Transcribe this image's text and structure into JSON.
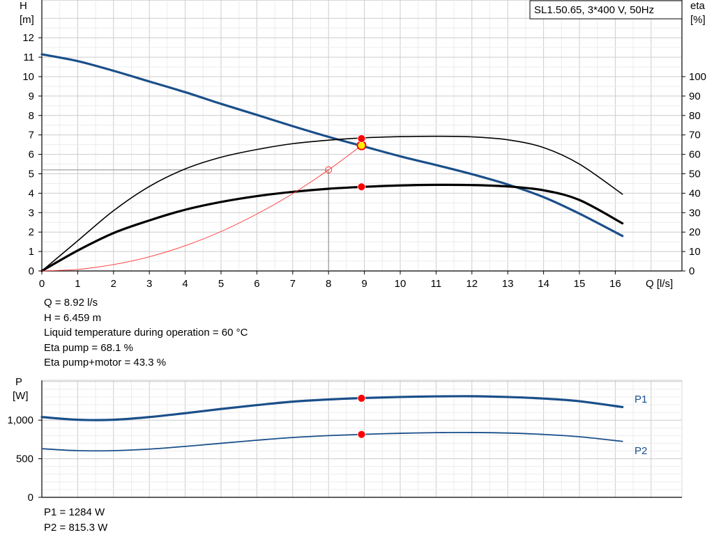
{
  "colors": {
    "curve_blue": "#1a4f8a",
    "curve_black": "#000000",
    "system_red": "#ff3333",
    "point_red": "#ff0000",
    "point_yellow": "#ffee00",
    "grid": "#cfcfcf"
  },
  "legend_box": "SL1.50.65, 3*400 V, 50Hz",
  "operating_info": [
    "Q = 8.92 l/s",
    "H = 6.459 m",
    "Liquid temperature during operation = 60 °C",
    "Eta pump = 68.1 %",
    "Eta pump+motor = 43.3 %"
  ],
  "power_info": [
    "P1 = 1284 W",
    "P2 = 815.3 W"
  ],
  "chart_data": [
    {
      "type": "line",
      "xlabel": "Q [l/s]",
      "ylabel_left": [
        "H",
        "[m]"
      ],
      "ylabel_right": [
        "eta",
        "[%]"
      ],
      "xlim": [
        0,
        17
      ],
      "ylim_left": [
        0,
        13
      ],
      "ylim_right": [
        0,
        130
      ],
      "x_ticks": [
        0,
        1,
        2,
        3,
        4,
        5,
        6,
        7,
        8,
        9,
        10,
        11,
        12,
        13,
        14,
        15,
        16
      ],
      "y_left_ticks": [
        0,
        1,
        2,
        3,
        4,
        5,
        6,
        7,
        8,
        9,
        10,
        11,
        12
      ],
      "y_right_ticks": [
        0,
        10,
        20,
        30,
        40,
        50,
        60,
        70,
        80,
        90,
        100
      ],
      "grid": true,
      "series": [
        {
          "axis": "left",
          "x": [
            0,
            1,
            2,
            3,
            4,
            5,
            6,
            7,
            8,
            9,
            10,
            11,
            12,
            13,
            14,
            15,
            16.2
          ],
          "values": [
            11.15,
            10.8,
            10.3,
            9.75,
            9.2,
            8.6,
            8.03,
            7.45,
            6.9,
            6.4,
            5.9,
            5.45,
            4.98,
            4.45,
            3.8,
            2.95,
            1.8
          ]
        },
        {
          "axis": "right",
          "x": [
            0,
            1,
            2,
            3,
            4,
            5,
            6,
            7,
            8,
            9,
            10,
            11,
            12,
            13,
            14,
            15,
            16.2
          ],
          "values": [
            0,
            15.5,
            31,
            43.5,
            52.5,
            58.5,
            62.5,
            65.5,
            67.3,
            68.5,
            69.1,
            69.3,
            69,
            67.5,
            63.5,
            55,
            39.5
          ]
        },
        {
          "axis": "right",
          "x": [
            0,
            1,
            2,
            3,
            4,
            5,
            6,
            7,
            8,
            9,
            10,
            11,
            12,
            13,
            14,
            15,
            16.2
          ],
          "values": [
            0,
            10.5,
            19.5,
            26,
            31.5,
            35.5,
            38.5,
            40.7,
            42.3,
            43.3,
            44,
            44.3,
            44.2,
            43.5,
            41.5,
            36.5,
            24.5
          ]
        },
        {
          "axis": "left",
          "x": [
            0,
            1,
            2,
            3,
            4,
            5,
            6,
            7,
            8,
            8.92
          ],
          "values": [
            0,
            0.08,
            0.33,
            0.73,
            1.3,
            2.03,
            2.93,
            3.98,
            5.2,
            6.46
          ]
        }
      ],
      "markers": [
        {
          "x": 8.92,
          "y_axis": "left",
          "y": 6.459,
          "style": "yellow"
        },
        {
          "x": 8.92,
          "y_axis": "right",
          "y": 68.1,
          "style": "red"
        },
        {
          "x": 8.92,
          "y_axis": "right",
          "y": 43.3,
          "style": "red"
        },
        {
          "x": 8.0,
          "y_axis": "left",
          "y": 5.2,
          "style": "hollow"
        }
      ],
      "guide": {
        "x": 8.0,
        "y": 5.2
      }
    },
    {
      "type": "line",
      "ylabel_left": [
        "P",
        "[W]"
      ],
      "xlim": [
        0,
        17
      ],
      "ylim": [
        0,
        1550
      ],
      "y_ticks": [
        0,
        500,
        1000
      ],
      "y_tick_labels": [
        "0",
        "500",
        "1,000"
      ],
      "grid": true,
      "series": [
        {
          "name": "P1",
          "x": [
            0,
            1,
            2,
            3,
            4,
            5,
            6,
            7,
            8,
            9,
            10,
            11,
            12,
            13,
            14,
            15,
            16.2
          ],
          "values": [
            1040,
            1005,
            1005,
            1040,
            1090,
            1145,
            1195,
            1240,
            1268,
            1287,
            1300,
            1308,
            1310,
            1300,
            1280,
            1245,
            1170
          ]
        },
        {
          "name": "P2",
          "x": [
            0,
            1,
            2,
            3,
            4,
            5,
            6,
            7,
            8,
            9,
            10,
            11,
            12,
            13,
            14,
            15,
            16.2
          ],
          "values": [
            630,
            605,
            605,
            625,
            660,
            700,
            740,
            775,
            800,
            817,
            830,
            838,
            840,
            833,
            815,
            785,
            725
          ]
        }
      ],
      "markers": [
        {
          "x": 8.92,
          "y": 1284,
          "style": "red"
        },
        {
          "x": 8.92,
          "y": 815.3,
          "style": "red"
        }
      ]
    }
  ]
}
